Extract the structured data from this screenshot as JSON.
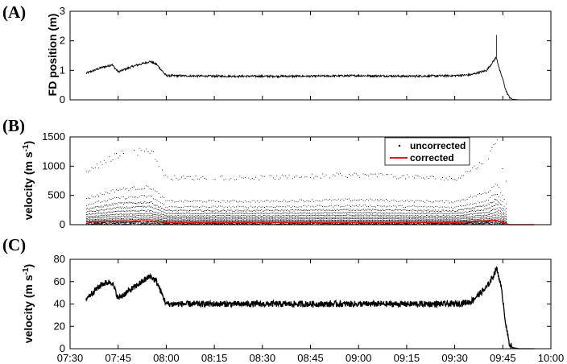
{
  "chart_data": [
    {
      "panel": "(A)",
      "type": "line",
      "ylabel": "FD position (m)",
      "xlim": [
        "07:30",
        "10:00"
      ],
      "ylim": [
        0,
        3
      ],
      "yticks": [
        "0",
        "1",
        "2",
        "3"
      ],
      "x": [
        "07:35",
        "07:40",
        "07:42",
        "07:43",
        "07:45",
        "07:50",
        "07:55",
        "07:57",
        "08:00",
        "08:15",
        "08:30",
        "08:45",
        "09:00",
        "09:15",
        "09:30",
        "09:35",
        "09:40",
        "09:42",
        "09:43",
        "09:44",
        "09:45",
        "09:46",
        "09:47",
        "09:48",
        "09:50",
        "09:55"
      ],
      "series": [
        {
          "values": [
            0.9,
            1.1,
            1.15,
            1.2,
            0.95,
            1.15,
            1.3,
            1.2,
            0.82,
            0.8,
            0.8,
            0.8,
            0.82,
            0.8,
            0.82,
            0.85,
            1.0,
            1.3,
            1.45,
            1.0,
            0.7,
            0.3,
            0.1,
            0.02,
            0.0,
            0.0
          ]
        }
      ],
      "spike": {
        "x": "09:43",
        "y": 2.2
      }
    },
    {
      "panel": "(B)",
      "type": "scatter",
      "ylabel": "velocity (m s",
      "ylabel_sup": "-1",
      "ylabel_close": ")",
      "ylim": [
        0,
        1500
      ],
      "yticks": [
        "0",
        "500",
        "1000",
        "1500"
      ],
      "legend": {
        "placement": "top-right",
        "entries": [
          {
            "label": "uncorrected",
            "marker": ".",
            "color": "#000000"
          },
          {
            "label": "corrected",
            "marker": "line",
            "color": "#e31a1c"
          }
        ]
      },
      "series": [
        {
          "name": "uncorrected",
          "color": "#000000",
          "bands_envelope": [
            "07:35",
            "07:45",
            "07:55",
            "08:00",
            "08:30",
            "09:00",
            "09:30",
            "09:40",
            "09:43",
            "09:46"
          ],
          "bands_envelope_values": [
            900,
            1200,
            1280,
            800,
            800,
            850,
            780,
            1100,
            1450,
            700
          ]
        },
        {
          "name": "corrected",
          "color": "#e31a1c",
          "x": [
            "07:35",
            "07:45",
            "07:55",
            "08:00",
            "09:30",
            "09:43",
            "09:47",
            "09:55"
          ],
          "values": [
            45,
            60,
            65,
            40,
            40,
            72,
            0,
            0
          ]
        }
      ]
    },
    {
      "panel": "(C)",
      "type": "line",
      "ylabel": "velocity (m s",
      "ylabel_sup": "-1",
      "ylabel_close": ")",
      "ylim": [
        0,
        80
      ],
      "yticks": [
        "0",
        "20",
        "40",
        "60",
        "80"
      ],
      "xticks": [
        "07:30",
        "07:45",
        "08:00",
        "08:15",
        "08:30",
        "08:45",
        "09:00",
        "09:15",
        "09:30",
        "09:45",
        "10:00"
      ],
      "x": [
        "07:35",
        "07:40",
        "07:43",
        "07:45",
        "07:50",
        "07:55",
        "07:57",
        "08:00",
        "08:15",
        "08:30",
        "08:45",
        "09:00",
        "09:15",
        "09:30",
        "09:35",
        "09:40",
        "09:42",
        "09:43",
        "09:44",
        "09:45",
        "09:46",
        "09:47",
        "09:48",
        "09:50",
        "09:55"
      ],
      "series": [
        {
          "values": [
            45,
            58,
            60,
            45,
            55,
            65,
            60,
            40,
            40,
            40,
            40,
            40,
            40,
            40,
            42,
            55,
            65,
            72,
            62,
            45,
            20,
            5,
            1,
            0,
            0
          ]
        }
      ]
    }
  ]
}
